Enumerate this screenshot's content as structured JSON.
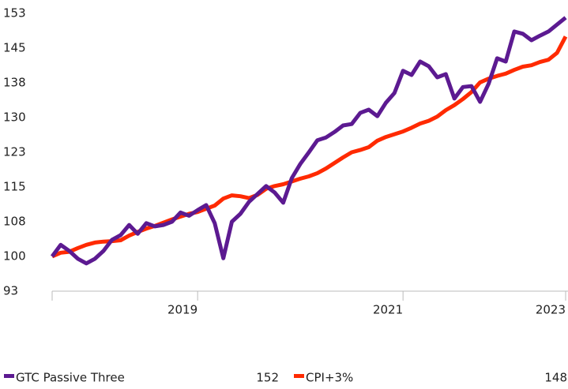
{
  "chart_data": {
    "type": "line",
    "categories": [
      null,
      null,
      null,
      null,
      null,
      null,
      null,
      null,
      null,
      null,
      null,
      null,
      null,
      null,
      null,
      null,
      null,
      "2019",
      null,
      null,
      null,
      null,
      null,
      null,
      null,
      null,
      null,
      null,
      null,
      null,
      null,
      null,
      null,
      null,
      null,
      null,
      null,
      null,
      null,
      null,
      null,
      "2021",
      null,
      null,
      null,
      null,
      null,
      null,
      null,
      null,
      null,
      null,
      null,
      null,
      null,
      null,
      null,
      null,
      null,
      null,
      "2023"
    ],
    "ylim": [
      92.5,
      152.5
    ],
    "yticks": [
      {
        "value": 92.5,
        "label": "93"
      },
      100,
      {
        "value": 107.5,
        "label": "108"
      },
      115,
      {
        "value": 122.5,
        "label": "123"
      },
      130,
      {
        "value": 137.5,
        "label": "138"
      },
      145,
      {
        "value": 152.5,
        "label": "153"
      }
    ],
    "grid": false,
    "legend": "bottom",
    "series": [
      {
        "name": "GTC Passive Three",
        "color": "#5c1a91",
        "legend_value": 152,
        "values": [
          100,
          102.5,
          101.2,
          99.5,
          98.5,
          99.5,
          101.2,
          103.6,
          104.6,
          106.8,
          104.9,
          107.2,
          106.5,
          106.8,
          107.5,
          109.5,
          108.8,
          110,
          111.1,
          107.2,
          99.6,
          107.5,
          109.2,
          111.8,
          113.5,
          115.2,
          113.8,
          111.6,
          116.9,
          120,
          122.5,
          125.1,
          125.7,
          126.9,
          128.3,
          128.6,
          131,
          131.7,
          130.3,
          133.2,
          135.3,
          140.1,
          139.2,
          142.1,
          141.1,
          138.7,
          139.4,
          134.1,
          136.6,
          136.8,
          133.4,
          137.3,
          142.8,
          142.1,
          148.6,
          148.1,
          146.7,
          147.7,
          148.6,
          150.1,
          151.6
        ]
      },
      {
        "name": "CPI+3%",
        "color": "#ff2a00",
        "legend_value": 148,
        "values": [
          100,
          100.8,
          101,
          101.8,
          102.5,
          103,
          103.2,
          103.3,
          103.5,
          104.5,
          105.3,
          106,
          106.6,
          107.3,
          108,
          108.6,
          109.2,
          109.6,
          110.3,
          111,
          112.5,
          113.2,
          113,
          112.6,
          113.3,
          114.6,
          115.2,
          115.6,
          116.2,
          116.8,
          117.3,
          118,
          119,
          120.2,
          121.4,
          122.5,
          123,
          123.6,
          125,
          125.8,
          126.4,
          127,
          127.8,
          128.7,
          129.3,
          130.2,
          131.6,
          132.7,
          134,
          135.5,
          137.6,
          138.4,
          139,
          139.5,
          140.3,
          141,
          141.3,
          142,
          142.5,
          144,
          147.5
        ]
      }
    ]
  }
}
